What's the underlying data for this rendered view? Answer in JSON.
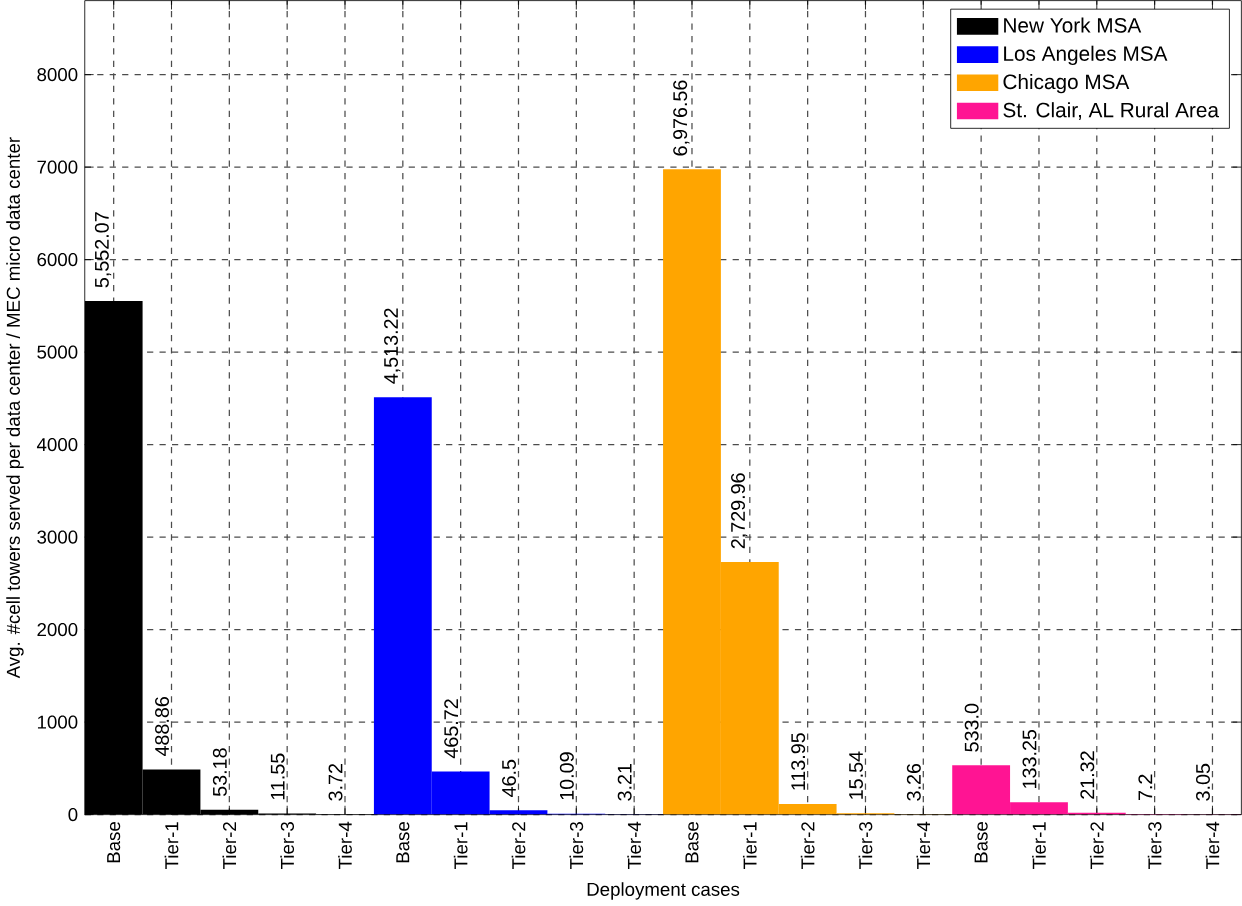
{
  "chart_data": {
    "type": "bar",
    "xlabel": "Deployment cases",
    "ylabel": "Avg. #cell towers served per data center / MEC micro data center",
    "categories": [
      "Base",
      "Tier-1",
      "Tier-2",
      "Tier-3",
      "Tier-4",
      "Base",
      "Tier-1",
      "Tier-2",
      "Tier-3",
      "Tier-4",
      "Base",
      "Tier-1",
      "Tier-2",
      "Tier-3",
      "Tier-4",
      "Base",
      "Tier-1",
      "Tier-2",
      "Tier-3",
      "Tier-4"
    ],
    "series": [
      {
        "name": "New York MSA",
        "color": "#000000",
        "values": [
          5552.07,
          488.86,
          53.18,
          11.55,
          3.72,
          null,
          null,
          null,
          null,
          null,
          null,
          null,
          null,
          null,
          null,
          null,
          null,
          null,
          null,
          null
        ],
        "value_labels": [
          "5,552.07",
          "488.86",
          "53.18",
          "11.55",
          "3.72",
          null,
          null,
          null,
          null,
          null,
          null,
          null,
          null,
          null,
          null,
          null,
          null,
          null,
          null,
          null
        ]
      },
      {
        "name": "Los Angeles MSA",
        "color": "#0000ff",
        "values": [
          null,
          null,
          null,
          null,
          null,
          4513.22,
          465.72,
          46.5,
          10.09,
          3.21,
          null,
          null,
          null,
          null,
          null,
          null,
          null,
          null,
          null,
          null
        ],
        "value_labels": [
          null,
          null,
          null,
          null,
          null,
          "4,513.22",
          "465.72",
          "46.5",
          "10.09",
          "3.21",
          null,
          null,
          null,
          null,
          null,
          null,
          null,
          null,
          null,
          null
        ]
      },
      {
        "name": "Chicago MSA",
        "color": "#ffa500",
        "values": [
          null,
          null,
          null,
          null,
          null,
          null,
          null,
          null,
          null,
          null,
          6976.56,
          2729.96,
          113.95,
          15.54,
          3.26,
          null,
          null,
          null,
          null,
          null
        ],
        "value_labels": [
          null,
          null,
          null,
          null,
          null,
          null,
          null,
          null,
          null,
          null,
          "6,976.56",
          "2,729.96",
          "113.95",
          "15.54",
          "3.26",
          null,
          null,
          null,
          null,
          null
        ]
      },
      {
        "name": "St. Clair, AL Rural Area",
        "color": "#ff1493",
        "values": [
          null,
          null,
          null,
          null,
          null,
          null,
          null,
          null,
          null,
          null,
          null,
          null,
          null,
          null,
          null,
          533.0,
          133.25,
          21.32,
          7.2,
          3.05
        ],
        "value_labels": [
          null,
          null,
          null,
          null,
          null,
          null,
          null,
          null,
          null,
          null,
          null,
          null,
          null,
          null,
          null,
          "533.0",
          "133.25",
          "21.32",
          "7.2",
          "3.05"
        ]
      }
    ],
    "ylim": [
      0,
      8800
    ],
    "yticks": [
      0,
      1000,
      2000,
      3000,
      4000,
      5000,
      6000,
      7000,
      8000
    ],
    "grid": true,
    "legend": "top right"
  }
}
